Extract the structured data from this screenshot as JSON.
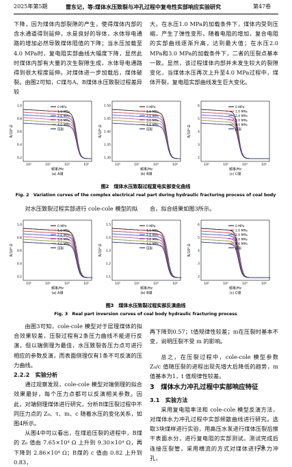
{
  "header": {
    "left": "2025年第5期",
    "center": "雷东记，等:煤体水压致裂与冲孔过程中复电性实部响应实验研究",
    "right": "第47卷"
  },
  "top_left": "下降，因为煤体内部裂隙的产生，使得煤体内部的含水通道得到延伸，水是良好的导体，水体导电通路的增加必然导致煤体阻值的下降；当水压加载至4.0 MPa时，复电阻实部曲线大幅度下降，显然此时煤体内部有大量的次生裂隙生成，水体导电通路得到很大程度延伸。对煤体进一步加载后，煤体破裂。由图2可知，C煤与A、B煤体水压致裂过程差异较",
  "top_right": "大。在水压1.0 MPa的加载条件下，煤体内受到压缩，产生了弹性变形，随着电阻的增加，复合电阻的实部曲线逐渐升高，达到最大值；在水压2.0 MPa和3.0 MPa的加载条件下，二者的压裂点基本一致。显然，该过程煤体内部并未发生较大的裂隙变化，当煤体水压再次上升至4.0 MPa过程中，煤体开裂，复电阻实部曲线发生巨大变化。",
  "figure2": {
    "legend": [
      "0 MPa",
      "1.0 MPa",
      "2.0 MPa",
      "3.0 MPa",
      "4.0 MPa",
      "压裂"
    ],
    "panels": [
      {
        "label": "(a) A煤",
        "ylabel": "R/10⁴ Ω",
        "xlabel": "频率/Hz",
        "yticks": [
          "1.0",
          "0.8",
          "0.6",
          "0.4",
          "0.2"
        ],
        "xticks": [
          "10⁰",
          "10²",
          "10⁴",
          "10⁶"
        ]
      },
      {
        "label": "(b) B煤",
        "ylabel": "R/10⁴ Ω",
        "xlabel": "频率/Hz",
        "yticks": [
          "1.50",
          "1.45",
          "1.40",
          "1.35",
          "1.30"
        ],
        "xticks": [
          "10⁰",
          "10²",
          "10⁴",
          "10⁶"
        ]
      },
      {
        "label": "(c) C煤",
        "ylabel": "R/10⁴ Ω",
        "xlabel": "频率/Hz",
        "yticks": [
          "6",
          "5",
          "4",
          "3",
          "2"
        ],
        "xticks": [
          "10⁰",
          "10²",
          "10⁴",
          "10⁶"
        ]
      }
    ],
    "caption_cn": "图2　煤体水压致裂过程复电实部变化曲线",
    "caption_en": "Fig. 2　Variation curves of the complex electrical real part during hydraulic fracturing process of coal body"
  },
  "mid_left": "对水压致裂过程实部进行 cole-cole 模型的拟",
  "mid_right": "合，拟合结果如图3所示。",
  "figure3": {
    "legend": [
      "0 MPa",
      "1.0 MPa",
      "2.0 MPa",
      "3.0 MPa",
      "4.0 MPa",
      "压裂"
    ],
    "panels": [
      {
        "label": "(a) A煤",
        "ylabel": "R/10⁴ Ω",
        "xlabel": "频率/Hz",
        "yticks": [
          "1.0",
          "0.8",
          "0.6",
          "0.4",
          "0.2"
        ],
        "xticks": [
          "10⁰",
          "10²",
          "10⁴",
          "10⁶"
        ]
      },
      {
        "label": "(b) B煤",
        "ylabel": "R/10⁴ Ω",
        "xlabel": "频率/Hz",
        "yticks": [
          "1.5",
          "1.4",
          "1.3",
          "1.2",
          "1.1"
        ],
        "xticks": [
          "10⁰",
          "10²",
          "10⁴",
          "10⁶"
        ]
      },
      {
        "label": "(c) C煤",
        "ylabel": "R/10⁴ Ω",
        "xlabel": "频率/Hz",
        "yticks": [
          "6",
          "5",
          "4",
          "3",
          "2"
        ],
        "xticks": [
          "10⁰",
          "10²",
          "10⁴",
          "10⁶"
        ]
      }
    ],
    "caption_cn": "图3　煤体水压致裂过程实部反演曲线",
    "caption_en": "Fig. 3　Real part inversion curves of coal body hydraulic fracturing process"
  },
  "bottom_left": {
    "p1": "由图3可知，cole-cole 模型对于层理煤体的拟合效果较差，压裂过程有2条压力曲线不能进行反演，但以端侧理为最佳，水压致裂各压力点可进行相应的参数反演，而表面侧理仅有1条不可反演的压力曲线。",
    "heading": "2.2.2　实验分析",
    "p2": "通过观察发现，cole-cole 模型对端侧理的拟合效果最好，每个压力点都可以反演相关参数。因此，对端侧理煤体进行研究，分析B煤压裂过程中不同压力点的 Z₀、τ、m、c 随着水压的变化关系，如图4所示。",
    "p3": "从图4中可以看出，在煤岩压裂的进程中，B煤的 Z₀ 值由 7.65×10⁴ Ω 上升到 9.30×10⁴ Ω，再下降到 2.86×10⁴ Ω；B煤的 c 值由 0.82 上升到 0.83，"
  },
  "bottom_right": {
    "p1": "再下降到0.57；t值规律性较差；m在压裂时基本不变，说明压裂不受 m 的影响。",
    "p2": "总之，在压裂过程中，cole-cole 模型参数 Z₀/c 值随压裂的进程出现先增大后降低的趋势，m 值基本为1，t 值规律性较差。",
    "heading": "3　煤体水力冲孔过程中实部响应特征",
    "subheading": "3.1　实验方法",
    "p3": "采用复电阻率法和 cole-cole 模型反演方法，对煤体水力冲孔过程中实部频散曲线进行研究。选取3块煤样进行实验，用高压水泵进行煤体压裂后擦干表面水分，进行复电阻的实部测试。测试完成后连接压裂管，采用横流的方式对煤体进行水力冲孔，"
  },
  "footer": "· 29 ·"
}
